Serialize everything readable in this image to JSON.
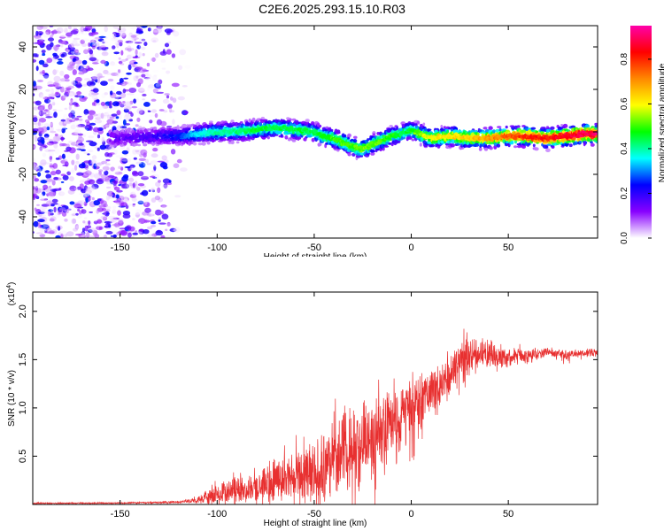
{
  "title": "C2E6.2025.293.15.10.R03",
  "chart_data": [
    {
      "type": "heatmap",
      "name": "spectrogram",
      "xlabel": "Height of straight line (km)",
      "ylabel": "Frequency (Hz)",
      "xlim": [
        -195,
        96
      ],
      "ylim": [
        -50,
        50
      ],
      "xticks": [
        -150,
        -100,
        -50,
        0,
        50
      ],
      "yticks": [
        -40,
        -20,
        0,
        20,
        40
      ],
      "xtick_labels": [
        "-150",
        "-100",
        "-50",
        "0",
        "50"
      ],
      "ytick_labels": [
        "-40",
        "-20",
        "0",
        "20",
        "40"
      ],
      "colorbar": {
        "label": "Normalized spectral amplitude",
        "range": [
          0,
          0.95
        ],
        "ticks": [
          0,
          0.2,
          0.4,
          0.6,
          0.8
        ],
        "tick_labels": [
          "0.0",
          "0.2",
          "0.4",
          "0.6",
          "0.8"
        ],
        "colors": [
          "#ffffff",
          "#8800ff",
          "#0000ff",
          "#00ffff",
          "#00ff00",
          "#ffff00",
          "#ff8800",
          "#ff0000",
          "#ff00aa"
        ]
      },
      "noise_region_x": [
        -195,
        -113
      ],
      "ridge": {
        "x": [
          -150,
          -130,
          -120,
          -110,
          -100,
          -90,
          -80,
          -70,
          -60,
          -50,
          -45,
          -40,
          -35,
          -30,
          -25,
          -20,
          -15,
          -10,
          -5,
          0,
          5,
          10,
          20,
          30,
          40,
          50,
          60,
          70,
          80,
          90,
          95
        ],
        "freq": [
          -3,
          -2,
          -2,
          -1,
          0,
          0,
          1,
          2,
          1,
          0,
          -2,
          -3,
          -5,
          -7,
          -8,
          -6,
          -4,
          -2,
          -1,
          1,
          -1,
          -3,
          -2,
          -3,
          -3,
          -2,
          -2,
          -3,
          -2,
          -1,
          -1
        ],
        "amplitude": [
          0.15,
          0.2,
          0.25,
          0.35,
          0.4,
          0.42,
          0.45,
          0.45,
          0.45,
          0.45,
          0.47,
          0.5,
          0.5,
          0.5,
          0.52,
          0.52,
          0.5,
          0.48,
          0.45,
          0.45,
          0.55,
          0.6,
          0.62,
          0.65,
          0.7,
          0.75,
          0.8,
          0.82,
          0.85,
          0.88,
          0.9
        ]
      }
    },
    {
      "type": "line",
      "name": "snr",
      "xlabel": "Height of straight line (km)",
      "ylabel": "SNR (10 * v/v)",
      "y_scale_label": "(x10",
      "y_scale_exponent": "4",
      "y_scale_close": ")",
      "xlim": [
        -195,
        96
      ],
      "ylim": [
        0,
        22000
      ],
      "xticks": [
        -150,
        -100,
        -50,
        0,
        50
      ],
      "yticks": [
        5000,
        10000,
        15000,
        20000
      ],
      "xtick_labels": [
        "-150",
        "-100",
        "-50",
        "0",
        "50"
      ],
      "ytick_labels": [
        "0.5",
        "1.0",
        "1.5",
        "2.0"
      ],
      "color": "#e83030",
      "series": [
        {
          "name": "SNR",
          "x": [
            -195,
            -150,
            -120,
            -110,
            -105,
            -100,
            -95,
            -90,
            -85,
            -80,
            -75,
            -70,
            -65,
            -60,
            -55,
            -50,
            -45,
            -40,
            -35,
            -30,
            -25,
            -20,
            -15,
            -10,
            -5,
            0,
            5,
            10,
            15,
            20,
            25,
            30,
            35,
            40,
            45,
            50,
            55,
            60,
            65,
            70,
            75,
            80,
            85,
            90,
            96
          ],
          "y": [
            120,
            150,
            250,
            400,
            700,
            1000,
            1500,
            1800,
            1600,
            2000,
            2300,
            2600,
            2500,
            2800,
            3000,
            3200,
            3800,
            4500,
            5200,
            5800,
            6500,
            7000,
            7800,
            8600,
            9300,
            10200,
            10800,
            11500,
            12400,
            13500,
            14500,
            15300,
            15600,
            15500,
            15400,
            15200,
            15300,
            15400,
            15600,
            15700,
            15600,
            15500,
            15600,
            15700,
            15800
          ],
          "spread": [
            80,
            80,
            150,
            400,
            900,
            1200,
            1600,
            2000,
            1800,
            2300,
            2500,
            3000,
            3000,
            3300,
            3500,
            3800,
            4300,
            5000,
            5200,
            5000,
            5000,
            4800,
            4600,
            4300,
            4000,
            3800,
            3500,
            3300,
            3000,
            2700,
            2500,
            2300,
            2000,
            1700,
            1500,
            1200,
            1000,
            900,
            800,
            700,
            650,
            600,
            550,
            500,
            500
          ]
        }
      ]
    }
  ]
}
